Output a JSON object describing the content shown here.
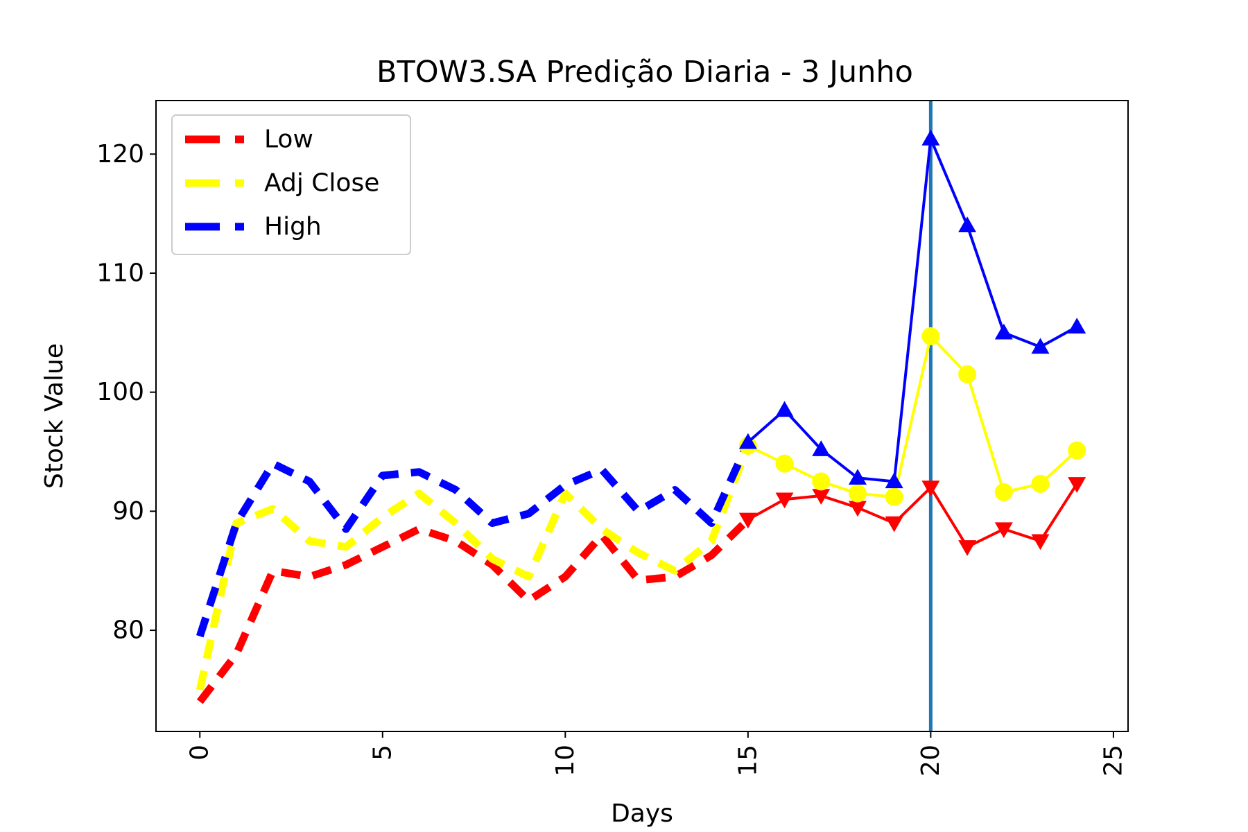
{
  "chart_data": {
    "type": "line",
    "title": "BTOW3.SA Predição Diaria - 3 Junho",
    "xlabel": "Days",
    "ylabel": "Stock Value",
    "xlim": [
      -1.2,
      25.4
    ],
    "ylim": [
      71.5,
      124.5
    ],
    "xticks": [
      "0",
      "5",
      "10",
      "15",
      "20",
      "25"
    ],
    "yticks": [
      "80",
      "90",
      "100",
      "110",
      "120"
    ],
    "xtick_values": [
      0,
      5,
      10,
      15,
      20,
      25
    ],
    "ytick_values": [
      80,
      90,
      100,
      110,
      120
    ],
    "xtick_rotation": "vertical",
    "grid": false,
    "legend_position": "top-left",
    "vline": {
      "x": 20,
      "color": "#1f77b4"
    },
    "series": [
      {
        "name": "Low",
        "color": "#ff0000",
        "historical": {
          "x": [
            0,
            1,
            2,
            3,
            4,
            5,
            6,
            7,
            8,
            9,
            10,
            11,
            12,
            13,
            14,
            15
          ],
          "y": [
            74.0,
            78.0,
            85.0,
            84.5,
            85.5,
            87.0,
            88.5,
            87.5,
            85.5,
            82.5,
            84.5,
            88.0,
            84.2,
            84.5,
            86.3,
            89.3
          ]
        },
        "predicted": {
          "x": [
            15,
            16,
            17,
            18,
            19,
            20,
            21,
            22,
            23,
            24
          ],
          "y": [
            89.3,
            91.0,
            91.3,
            90.3,
            89.0,
            92.0,
            87.0,
            88.5,
            87.5,
            92.3
          ]
        },
        "marker": "triangle-down"
      },
      {
        "name": "Adj Close",
        "color": "#ffff00",
        "historical": {
          "x": [
            0,
            1,
            2,
            3,
            4,
            5,
            6,
            7,
            8,
            9,
            10,
            11,
            12,
            13,
            14,
            15
          ],
          "y": [
            75.0,
            89.0,
            90.2,
            87.5,
            87.0,
            89.5,
            91.5,
            89.0,
            86.0,
            84.5,
            91.5,
            88.5,
            86.5,
            85.0,
            87.5,
            95.5
          ]
        },
        "predicted": {
          "x": [
            15,
            16,
            17,
            18,
            19,
            20,
            21,
            22,
            23,
            24
          ],
          "y": [
            95.5,
            94.0,
            92.5,
            91.5,
            91.2,
            104.7,
            101.5,
            91.6,
            92.3,
            95.1
          ]
        },
        "marker": "circle"
      },
      {
        "name": "High",
        "color": "#0000ff",
        "historical": {
          "x": [
            0,
            1,
            2,
            3,
            4,
            5,
            6,
            7,
            8,
            9,
            10,
            11,
            12,
            13,
            14,
            15
          ],
          "y": [
            79.5,
            89.0,
            94.0,
            92.5,
            88.5,
            93.0,
            93.3,
            91.8,
            89.0,
            89.8,
            92.2,
            93.5,
            90.0,
            91.8,
            89.0,
            95.8
          ]
        },
        "predicted": {
          "x": [
            15,
            16,
            17,
            18,
            19,
            20,
            21,
            22,
            23,
            24
          ],
          "y": [
            95.8,
            98.5,
            95.2,
            92.8,
            92.5,
            121.3,
            114.0,
            105.0,
            103.8,
            105.5
          ]
        },
        "marker": "triangle-up"
      }
    ]
  }
}
